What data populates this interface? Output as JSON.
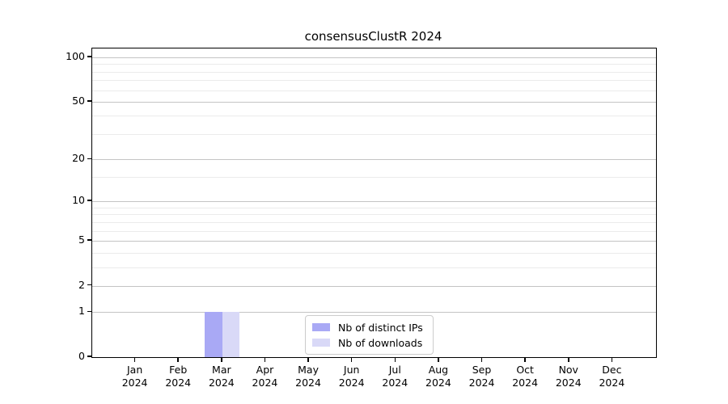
{
  "chart_data": {
    "type": "bar",
    "title": "consensusClustR 2024",
    "categories": [
      "Jan",
      "Feb",
      "Mar",
      "Apr",
      "May",
      "Jun",
      "Jul",
      "Aug",
      "Sep",
      "Oct",
      "Nov",
      "Dec"
    ],
    "category_year": "2024",
    "series": [
      {
        "name": "Nb of distinct IPs",
        "color": "#a9a9f5",
        "values": [
          0,
          0,
          1,
          0,
          0,
          0,
          0,
          0,
          0,
          0,
          0,
          0
        ]
      },
      {
        "name": "Nb of downloads",
        "color": "#d9d9f7",
        "values": [
          0,
          0,
          1,
          0,
          0,
          0,
          0,
          0,
          0,
          0,
          0,
          0
        ]
      }
    ],
    "xlabel": "",
    "ylabel": "",
    "y_axis": {
      "scale": "log1p",
      "ticks": [
        0,
        1,
        2,
        5,
        10,
        20,
        50,
        100
      ],
      "minor_gridlines": [
        3,
        4,
        6,
        7,
        8,
        9,
        15,
        30,
        40,
        60,
        70,
        80,
        90
      ],
      "range": [
        0,
        115
      ]
    },
    "grid": "horizontal",
    "legend": {
      "position": "lower center",
      "entries": [
        "Nb of distinct IPs",
        "Nb of downloads"
      ]
    },
    "colors": {
      "major_grid": "#c4c4c4",
      "minor_grid": "#ebebeb",
      "spine": "#000000",
      "text": "#000000",
      "background": "#ffffff"
    }
  }
}
